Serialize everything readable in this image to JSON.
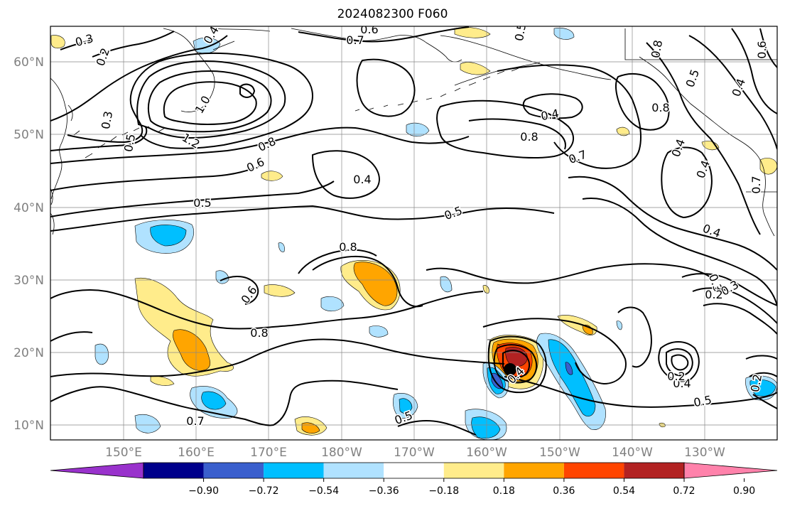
{
  "title": "2024082300 F060",
  "lat_labels": [
    "60°N",
    "50°N",
    "40°N",
    "30°N",
    "20°N",
    "10°N"
  ],
  "lon_labels": [
    "150°E",
    "160°E",
    "170°E",
    "180°W",
    "170°W",
    "160°W",
    "150°W",
    "140°W",
    "130°W"
  ],
  "colorbar": {
    "colors": [
      "#9932cc",
      "#00008b",
      "#3a5fcd",
      "#00bfff",
      "#b0e2ff",
      "#ffffff",
      "#ffec8b",
      "#ffa500",
      "#ff4500",
      "#b22222",
      "#ff82ab"
    ],
    "ticks": [
      "−0.90",
      "−0.72",
      "−0.54",
      "−0.36",
      "−0.18",
      "0.18",
      "0.36",
      "0.54",
      "0.72",
      "0.90"
    ]
  },
  "contour_labels": [
    "0.3",
    "0.2",
    "0.4",
    "0.6",
    "0.7",
    "0.3",
    "0.5",
    "1.0",
    "1.2",
    "0.8",
    "0.6",
    "0.5",
    "0.4",
    "0.5",
    "0.8",
    "0.6",
    "0.8",
    "0.7",
    "0.5",
    "0.4",
    "0.5",
    "0.4",
    "0.8",
    "0.7",
    "0.8",
    "0.4",
    "0.4",
    "0.4",
    "0.3",
    "0.3",
    "0.2",
    "0.4",
    "0.2",
    "0.2",
    "0.7",
    "0.6",
    "0.8",
    "0.5",
    "0.4",
    "0.5"
  ]
}
